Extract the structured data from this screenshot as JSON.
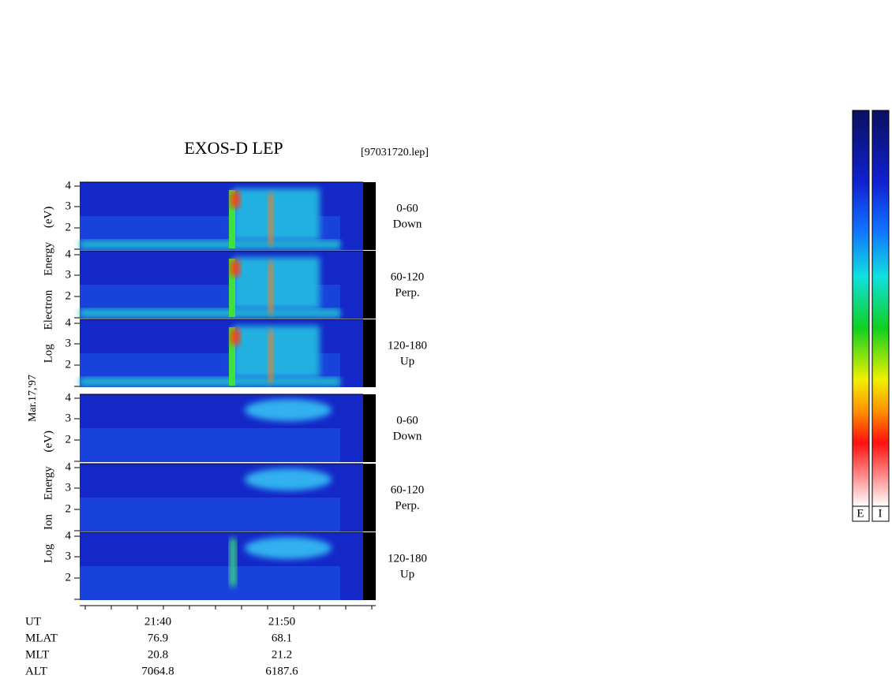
{
  "header": {
    "title": "EXOS-D LEP",
    "file": "[97031720.lep]"
  },
  "date": "Mar.17,'97",
  "groups": [
    {
      "label": "Log Electron Energy (eV)"
    },
    {
      "label": "Log Ion Energy (eV)"
    }
  ],
  "panels": [
    {
      "range": "0-60",
      "direction": "Down"
    },
    {
      "range": "60-120",
      "direction": "Perp."
    },
    {
      "range": "120-180",
      "direction": "Up"
    },
    {
      "range": "0-60",
      "direction": "Down"
    },
    {
      "range": "60-120",
      "direction": "Perp."
    },
    {
      "range": "120-180",
      "direction": "Up"
    }
  ],
  "yticks": [
    "4",
    "3",
    "2"
  ],
  "time_axis": {
    "ticks": [
      "21:40",
      "21:50"
    ]
  },
  "rows": [
    {
      "label": "UT"
    },
    {
      "label": "MLAT",
      "values": [
        "76.9",
        "68.1"
      ]
    },
    {
      "label": "MLT",
      "values": [
        "20.8",
        "21.2"
      ]
    },
    {
      "label": "ALT",
      "values": [
        "7064.8",
        "6187.6"
      ]
    }
  ],
  "colorbars": [
    "E",
    "I"
  ]
}
